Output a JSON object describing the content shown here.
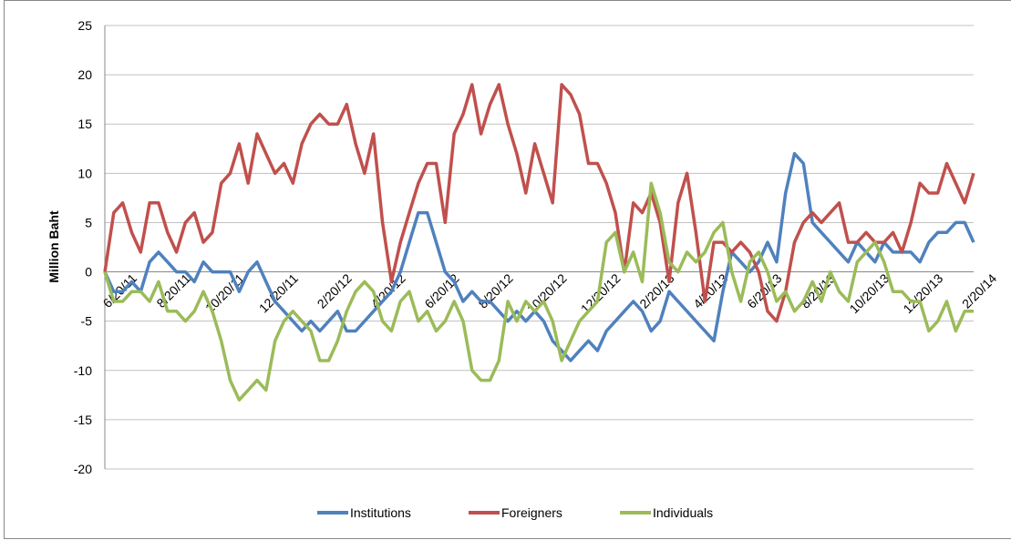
{
  "chart_data": {
    "type": "line",
    "ylabel": "Million Baht",
    "categories": [
      "6/20/11",
      null,
      null,
      null,
      null,
      null,
      "8/20/11",
      null,
      null,
      null,
      null,
      null,
      "10/20/11",
      null,
      null,
      null,
      null,
      null,
      "12/20/11",
      null,
      null,
      null,
      null,
      null,
      "2/20/12",
      null,
      null,
      null,
      null,
      null,
      "4/20/12",
      null,
      null,
      null,
      null,
      null,
      "6/20/12",
      null,
      null,
      null,
      null,
      null,
      "8/20/12",
      null,
      null,
      null,
      null,
      null,
      "10/20/12",
      null,
      null,
      null,
      null,
      null,
      "12/20/12",
      null,
      null,
      null,
      null,
      null,
      "2/20/13",
      null,
      null,
      null,
      null,
      null,
      "4/20/13",
      null,
      null,
      null,
      null,
      null,
      "6/20/13",
      null,
      null,
      null,
      null,
      null,
      "8/20/13",
      null,
      null,
      null,
      null,
      null,
      "10/20/13",
      null,
      null,
      null,
      null,
      null,
      "12/20/13",
      null,
      null,
      null,
      null,
      null,
      "2/20/14",
      null
    ],
    "series": [
      {
        "name": "Institutions",
        "color": "#4f81bd",
        "values": [
          0,
          -2,
          -2,
          -1,
          -2,
          1,
          2,
          1,
          0,
          0,
          -1,
          1,
          0,
          0,
          0,
          -2,
          0,
          1,
          -1,
          -3,
          -4,
          -5,
          -6,
          -5,
          -6,
          -5,
          -4,
          -6,
          -6,
          -5,
          -4,
          -3,
          -2,
          0,
          3,
          6,
          6,
          3,
          0,
          -1,
          -3,
          -2,
          -3,
          -3,
          -4,
          -5,
          -4,
          -5,
          -4,
          -5,
          -7,
          -8,
          -9,
          -8,
          -7,
          -8,
          -6,
          -5,
          -4,
          -3,
          -4,
          -6,
          -5,
          -2,
          -3,
          -4,
          -5,
          -6,
          -7,
          -2,
          2,
          1,
          0,
          1,
          3,
          1,
          8,
          12,
          11,
          5,
          4,
          3,
          2,
          1,
          3,
          2,
          1,
          3,
          2,
          2,
          2,
          1,
          3,
          4,
          4,
          5,
          5,
          3
        ]
      },
      {
        "name": "Foreigners",
        "color": "#c0504d",
        "values": [
          0,
          6,
          7,
          4,
          2,
          7,
          7,
          4,
          2,
          5,
          6,
          3,
          4,
          9,
          10,
          13,
          9,
          14,
          12,
          10,
          11,
          9,
          13,
          15,
          16,
          15,
          15,
          17,
          13,
          10,
          14,
          5,
          -1,
          3,
          6,
          9,
          11,
          11,
          5,
          14,
          16,
          19,
          14,
          17,
          19,
          15,
          12,
          8,
          13,
          10,
          7,
          19,
          18,
          16,
          11,
          11,
          9,
          6,
          0,
          7,
          6,
          8,
          5,
          -1,
          7,
          10,
          4,
          -3,
          3,
          3,
          2,
          3,
          2,
          0,
          -4,
          -5,
          -2,
          3,
          5,
          6,
          5,
          6,
          7,
          3,
          3,
          4,
          3,
          3,
          4,
          2,
          5,
          9,
          8,
          8,
          11,
          9,
          7,
          10
        ]
      },
      {
        "name": "Individuals",
        "color": "#9bbb59",
        "values": [
          0,
          -3,
          -3,
          -2,
          -2,
          -3,
          -1,
          -4,
          -4,
          -5,
          -4,
          -2,
          -4,
          -7,
          -11,
          -13,
          -12,
          -11,
          -12,
          -7,
          -5,
          -4,
          -5,
          -6,
          -9,
          -9,
          -7,
          -4,
          -2,
          -1,
          -2,
          -5,
          -6,
          -3,
          -2,
          -5,
          -4,
          -6,
          -5,
          -3,
          -5,
          -10,
          -11,
          -11,
          -9,
          -3,
          -5,
          -3,
          -4,
          -3,
          -5,
          -9,
          -7,
          -5,
          -4,
          -3,
          3,
          4,
          0,
          2,
          -1,
          9,
          6,
          1,
          0,
          2,
          1,
          2,
          4,
          5,
          0,
          -3,
          1,
          2,
          0,
          -3,
          -2,
          -4,
          -3,
          -1,
          -3,
          0,
          -2,
          -3,
          1,
          2,
          3,
          1,
          -2,
          -2,
          -3,
          -3,
          -6,
          -5,
          -3,
          -6,
          -4,
          -4
        ]
      }
    ],
    "ylim": [
      -20,
      25
    ],
    "yticks": [
      -20,
      -15,
      -10,
      -5,
      0,
      5,
      10,
      15,
      20,
      25
    ],
    "grid": true,
    "legend": "bottom"
  }
}
